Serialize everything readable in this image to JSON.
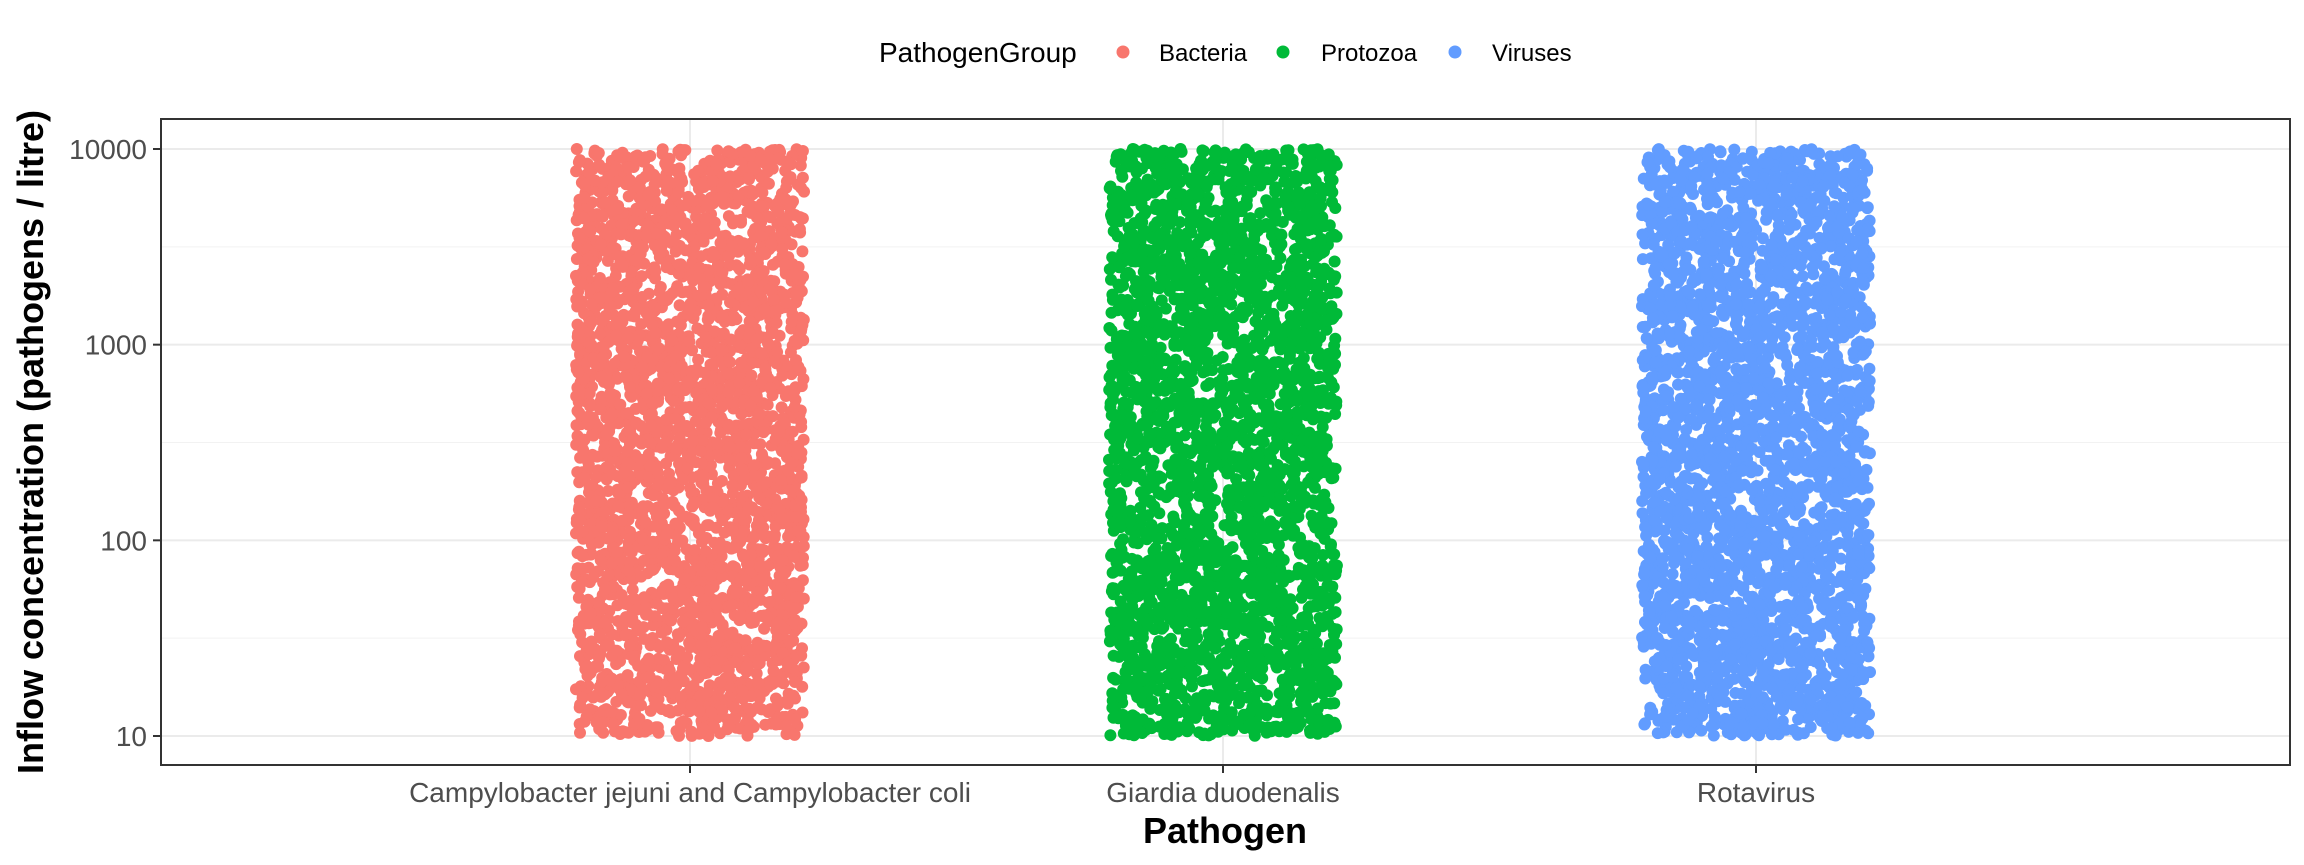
{
  "chart_data": {
    "type": "scatter",
    "title": "",
    "xlabel": "Pathogen",
    "ylabel": "Inflow concentration (pathogens / litre)",
    "categories": [
      "Campylobacter jejuni and Campylobacter coli",
      "Giardia duodenalis",
      "Rotavirus"
    ],
    "y_scale": "log10",
    "ylim": [
      10,
      10000
    ],
    "y_ticks": [
      10,
      100,
      1000,
      10000
    ],
    "y_tick_labels": [
      "10",
      "100",
      "1000",
      "10000"
    ],
    "grid": true,
    "legend": {
      "title": "PathogenGroup",
      "position": "top",
      "entries": [
        {
          "name": "Bacteria",
          "color": "#F8766D"
        },
        {
          "name": "Protozoa",
          "color": "#00BA38"
        },
        {
          "name": "Viruses",
          "color": "#619CFF"
        }
      ]
    },
    "series": [
      {
        "name": "Bacteria",
        "category": "Campylobacter jejuni and Campylobacter coli",
        "color": "#F8766D",
        "y_min": 10,
        "y_max": 10000,
        "distribution": "log-uniform",
        "jitter": 0.4,
        "n_points": 3000
      },
      {
        "name": "Protozoa",
        "category": "Giardia duodenalis",
        "color": "#00BA38",
        "y_min": 10,
        "y_max": 10000,
        "distribution": "log-uniform",
        "jitter": 0.4,
        "n_points": 3000
      },
      {
        "name": "Viruses",
        "category": "Rotavirus",
        "color": "#619CFF",
        "y_min": 10,
        "y_max": 10000,
        "distribution": "log-uniform",
        "jitter": 0.4,
        "n_points": 3000
      }
    ]
  }
}
